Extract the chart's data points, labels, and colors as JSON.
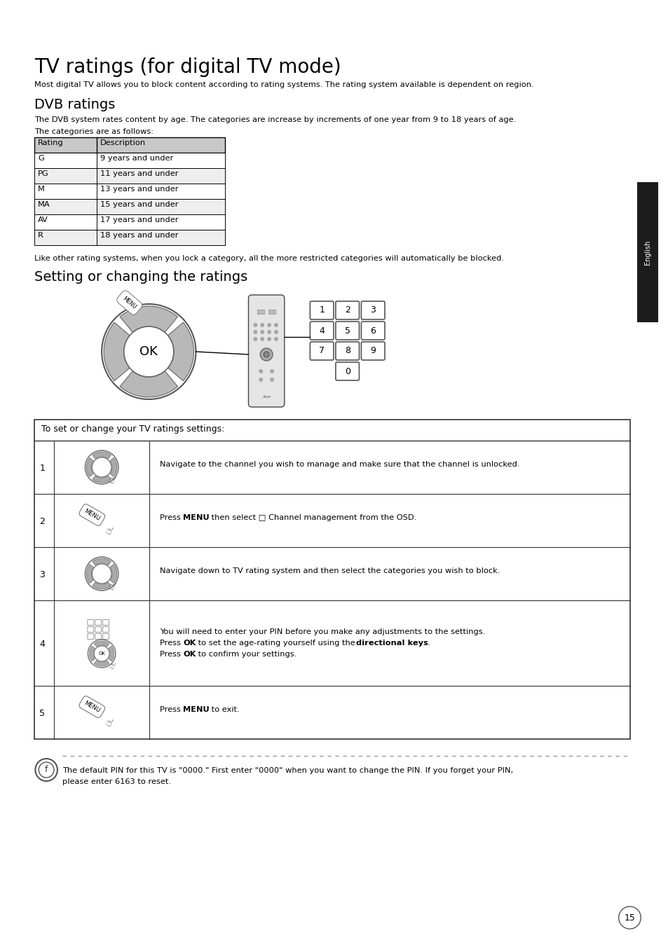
{
  "title": "TV ratings (for digital TV mode)",
  "intro_text": "Most digital TV allows you to block content according to rating systems. The rating system available is dependent on region.",
  "dvb_heading": "DVB ratings",
  "dvb_text1": "The DVB system rates content by age. The categories are increase by increments of one year from 9 to 18 years of age.",
  "dvb_text2": "The categories are as follows:",
  "table_headers": [
    "Rating",
    "Description"
  ],
  "table_rows": [
    [
      "G",
      "9 years and under"
    ],
    [
      "PG",
      "11 years and under"
    ],
    [
      "M",
      "13 years and under"
    ],
    [
      "MA",
      "15 years and under"
    ],
    [
      "AV",
      "17 years and under"
    ],
    [
      "R",
      "18 years and under"
    ]
  ],
  "lock_text": "Like other rating systems, when you lock a category, all the more restricted categories will automatically be blocked.",
  "setting_heading": "Setting or changing the ratings",
  "keypad_numbers": [
    [
      "1",
      "2",
      "3"
    ],
    [
      "4",
      "5",
      "6"
    ],
    [
      "7",
      "8",
      "9"
    ],
    [
      "0"
    ]
  ],
  "instructions_header": "To set or change your TV ratings settings:",
  "instructions": [
    {
      "num": "1",
      "lines": [
        "Navigate to the channel you wish to manage and make sure that the channel is unlocked."
      ]
    },
    {
      "num": "2",
      "lines": [
        "Press {MENU} then select □ Channel management from the OSD."
      ]
    },
    {
      "num": "3",
      "lines": [
        "Navigate down to TV rating system and then select the categories you wish to block."
      ]
    },
    {
      "num": "4",
      "lines": [
        "You will need to enter your PIN before you make any adjustments to the settings.",
        "Press {OK} to set the age-rating yourself using the {directional keys}.",
        "Press {OK} to confirm your settings."
      ]
    },
    {
      "num": "5",
      "lines": [
        "Press {MENU} to exit."
      ]
    }
  ],
  "note_line1": "The default PIN for this TV is \"0000.\" First enter \"0000\" when you want to change the PIN. If you forget your PIN,",
  "note_line2": "please enter 6163 to reset.",
  "page_number": "15",
  "sidebar_text": "English",
  "bg_color": "#ffffff"
}
